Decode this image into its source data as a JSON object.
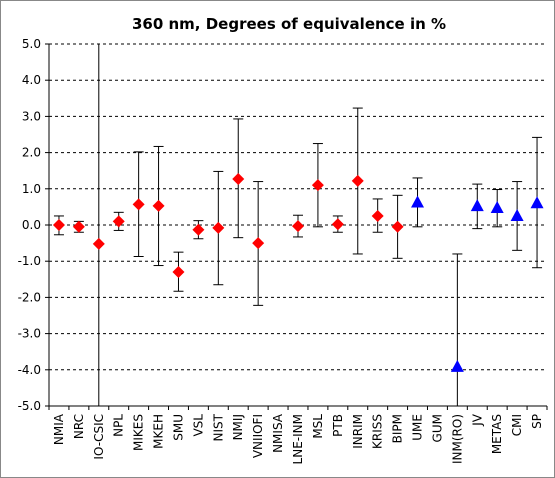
{
  "chart_data": {
    "type": "scatter",
    "title": "360 nm, Degrees of equivalence in %",
    "xlabel": "",
    "ylabel": "",
    "ylim": [
      -5.0,
      5.0
    ],
    "ytick_step": 1.0,
    "grid": "horizontal dashed",
    "categories": [
      "NMIA",
      "NRC",
      "IO-CSIC",
      "NPL",
      "MIKES",
      "MKEH",
      "SMU",
      "VSL",
      "NIST",
      "NMIJ",
      "VNIIOFI",
      "NMISA",
      "LNE-INM",
      "MSL",
      "PTB",
      "INRIM",
      "KRISS",
      "BIPM",
      "UME",
      "GUM",
      "INM(RO)",
      "JV",
      "METAS",
      "CMI",
      "SP"
    ],
    "series": [
      {
        "marker": "diamond",
        "color": "#ff0000",
        "points": [
          {
            "x": "NMIA",
            "y": 0.0,
            "err_low": -0.27,
            "err_high": 0.25
          },
          {
            "x": "NRC",
            "y": -0.05,
            "err_low": -0.2,
            "err_high": 0.1
          },
          {
            "x": "IO-CSIC",
            "y": -0.52,
            "err_low": -5.0,
            "err_high": 5.0
          },
          {
            "x": "NPL",
            "y": 0.1,
            "err_low": -0.15,
            "err_high": 0.35
          },
          {
            "x": "MIKES",
            "y": 0.57,
            "err_low": -0.87,
            "err_high": 2.02
          },
          {
            "x": "MKEH",
            "y": 0.53,
            "err_low": -1.12,
            "err_high": 2.17
          },
          {
            "x": "SMU",
            "y": -1.3,
            "err_low": -1.83,
            "err_high": -0.75
          },
          {
            "x": "VSL",
            "y": -0.13,
            "err_low": -0.38,
            "err_high": 0.12
          },
          {
            "x": "NIST",
            "y": -0.08,
            "err_low": -1.65,
            "err_high": 1.48
          },
          {
            "x": "NMIJ",
            "y": 1.27,
            "err_low": -0.35,
            "err_high": 2.93
          },
          {
            "x": "VNIIOFI",
            "y": -0.5,
            "err_low": -2.22,
            "err_high": 1.2
          },
          {
            "x": "LNE-INM",
            "y": -0.03,
            "err_low": -0.33,
            "err_high": 0.27
          },
          {
            "x": "MSL",
            "y": 1.1,
            "err_low": -0.05,
            "err_high": 2.25
          },
          {
            "x": "PTB",
            "y": 0.02,
            "err_low": -0.2,
            "err_high": 0.25
          },
          {
            "x": "INRIM",
            "y": 1.22,
            "err_low": -0.8,
            "err_high": 3.23
          },
          {
            "x": "KRISS",
            "y": 0.25,
            "err_low": -0.2,
            "err_high": 0.72
          },
          {
            "x": "BIPM",
            "y": -0.05,
            "err_low": -0.92,
            "err_high": 0.82
          }
        ]
      },
      {
        "marker": "triangle",
        "color": "#0000ff",
        "points": [
          {
            "x": "UME",
            "y": 0.62,
            "err_low": -0.05,
            "err_high": 1.3
          },
          {
            "x": "INM(RO)",
            "y": -3.92,
            "err_low": -5.0,
            "err_high": -0.8
          },
          {
            "x": "JV",
            "y": 0.52,
            "err_low": -0.1,
            "err_high": 1.13
          },
          {
            "x": "METAS",
            "y": 0.47,
            "err_low": -0.05,
            "err_high": 0.98
          },
          {
            "x": "CMI",
            "y": 0.25,
            "err_low": -0.7,
            "err_high": 1.2
          },
          {
            "x": "SP",
            "y": 0.6,
            "err_low": -1.18,
            "err_high": 2.42
          }
        ]
      }
    ]
  }
}
